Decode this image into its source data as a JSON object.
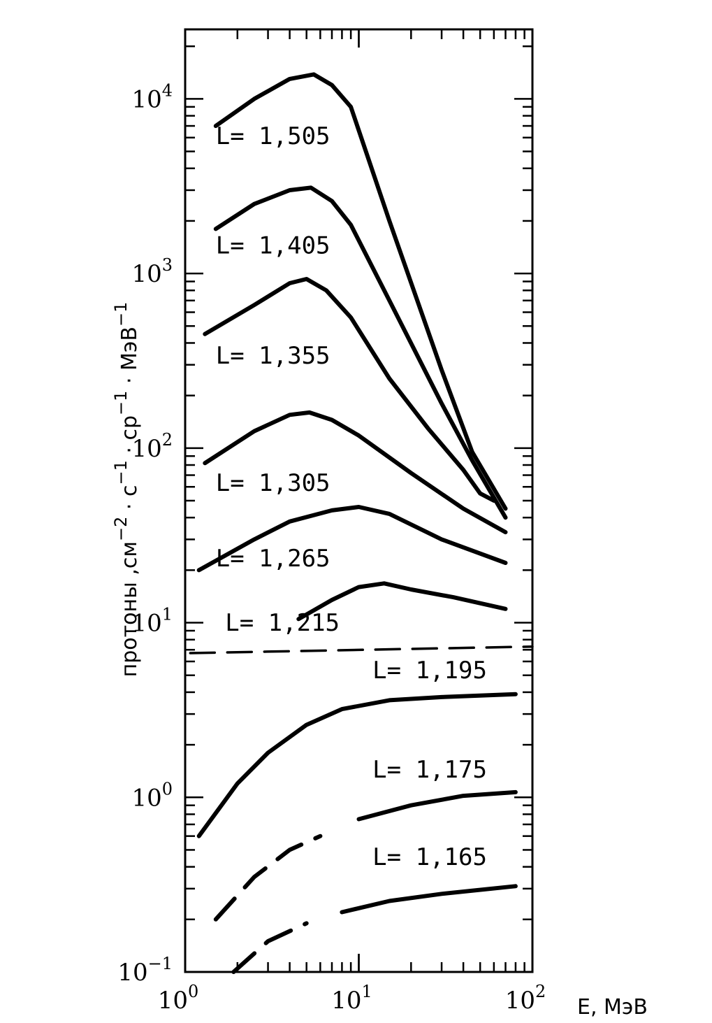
{
  "chart_data": {
    "type": "line",
    "title": "",
    "x_scale": "log",
    "y_scale": "log",
    "xlim": [
      1,
      100
    ],
    "ylim": [
      0.1,
      25000
    ],
    "grid": false,
    "xlabel": {
      "prefix": "E, МэВ"
    },
    "ylabel": {
      "p1": "протоны ,см",
      "e1": "−2",
      "p2": " · с",
      "e2": "−1",
      "p3": " · ср",
      "e3": "−1",
      "p4": " · МэВ",
      "e4": "−1"
    },
    "x_ticks": [
      {
        "base": "10",
        "exp": "0",
        "value": 1
      },
      {
        "base": "10",
        "exp": "1",
        "value": 10
      },
      {
        "base": "10",
        "exp": "2",
        "value": 100
      }
    ],
    "y_ticks": [
      {
        "base": "10",
        "exp": "−1",
        "value": 0.1
      },
      {
        "base": "10",
        "exp": "0",
        "value": 1
      },
      {
        "base": "10",
        "exp": "1",
        "value": 10
      },
      {
        "base": "10",
        "exp": "2",
        "value": 100
      },
      {
        "base": "10",
        "exp": "3",
        "value": 1000
      },
      {
        "base": "10",
        "exp": "4",
        "value": 10000
      }
    ],
    "series": [
      {
        "name": "L= 1,505",
        "label_at": [
          1.5,
          5500
        ],
        "points": [
          [
            1.5,
            7000
          ],
          [
            2.5,
            10000
          ],
          [
            4,
            13000
          ],
          [
            5.5,
            13800
          ],
          [
            7,
            12000
          ],
          [
            9,
            9000
          ],
          [
            15,
            2000
          ],
          [
            30,
            280
          ],
          [
            45,
            95
          ],
          [
            70,
            45
          ]
        ]
      },
      {
        "name": "L= 1,405",
        "label_at": [
          1.5,
          1300
        ],
        "points": [
          [
            1.5,
            1800
          ],
          [
            2.5,
            2500
          ],
          [
            4,
            3000
          ],
          [
            5.3,
            3100
          ],
          [
            7,
            2600
          ],
          [
            9,
            1900
          ],
          [
            15,
            700
          ],
          [
            30,
            180
          ],
          [
            45,
            85
          ],
          [
            70,
            40
          ]
        ]
      },
      {
        "name": "L= 1,355",
        "label_at": [
          1.5,
          305
        ],
        "points": [
          [
            1.3,
            450
          ],
          [
            2.5,
            660
          ],
          [
            4,
            880
          ],
          [
            5,
            930
          ],
          [
            6.5,
            800
          ],
          [
            9,
            560
          ],
          [
            15,
            250
          ],
          [
            25,
            130
          ],
          [
            40,
            75
          ],
          [
            50,
            55
          ],
          [
            60,
            50
          ]
        ]
      },
      {
        "name": "L= 1,305",
        "label_at": [
          1.5,
          57
        ],
        "points": [
          [
            1.3,
            82
          ],
          [
            2.5,
            125
          ],
          [
            4,
            155
          ],
          [
            5.2,
            160
          ],
          [
            7,
            145
          ],
          [
            10,
            118
          ],
          [
            20,
            72
          ],
          [
            40,
            45
          ],
          [
            70,
            33
          ]
        ]
      },
      {
        "name": "L= 1,265",
        "label_at": [
          1.5,
          21
        ],
        "points": [
          [
            1.2,
            20
          ],
          [
            2.5,
            30
          ],
          [
            4,
            38
          ],
          [
            7,
            44
          ],
          [
            10,
            46
          ],
          [
            15,
            42
          ],
          [
            30,
            30
          ],
          [
            70,
            22
          ]
        ]
      },
      {
        "name": "L= 1,215",
        "label_at": [
          1.7,
          9
        ],
        "dash": "35,18",
        "points": [
          [
            1.07,
            6.7
          ],
          [
            100,
            7.3
          ]
        ]
      },
      {
        "name": "",
        "label_at": null,
        "points": [
          [
            4.5,
            10.5
          ],
          [
            7,
            13.5
          ],
          [
            10,
            16
          ],
          [
            14,
            16.8
          ],
          [
            20,
            15.5
          ],
          [
            35,
            14
          ],
          [
            70,
            12
          ]
        ]
      },
      {
        "name": "L= 1,195",
        "label_at": [
          12,
          4.8
        ],
        "points": [
          [
            1.2,
            0.6
          ],
          [
            2,
            1.2
          ],
          [
            3,
            1.8
          ],
          [
            5,
            2.6
          ],
          [
            8,
            3.2
          ],
          [
            15,
            3.6
          ],
          [
            30,
            3.75
          ],
          [
            80,
            3.9
          ]
        ]
      },
      {
        "name": "L= 1,175",
        "label_at": [
          12,
          1.3
        ],
        "dash_until": 6.5,
        "points": [
          [
            1.5,
            0.2
          ],
          [
            2.5,
            0.35
          ],
          [
            4,
            0.5
          ],
          [
            6,
            0.6
          ],
          [
            10,
            0.75
          ],
          [
            20,
            0.9
          ],
          [
            40,
            1.02
          ],
          [
            80,
            1.07
          ]
        ]
      },
      {
        "name": "L= 1,165",
        "label_at": [
          12,
          0.41
        ],
        "dash_until": 7.3,
        "points": [
          [
            1.9,
            0.1
          ],
          [
            3,
            0.15
          ],
          [
            5,
            0.19
          ],
          [
            8,
            0.22
          ],
          [
            15,
            0.255
          ],
          [
            30,
            0.28
          ],
          [
            80,
            0.31
          ]
        ]
      }
    ]
  }
}
